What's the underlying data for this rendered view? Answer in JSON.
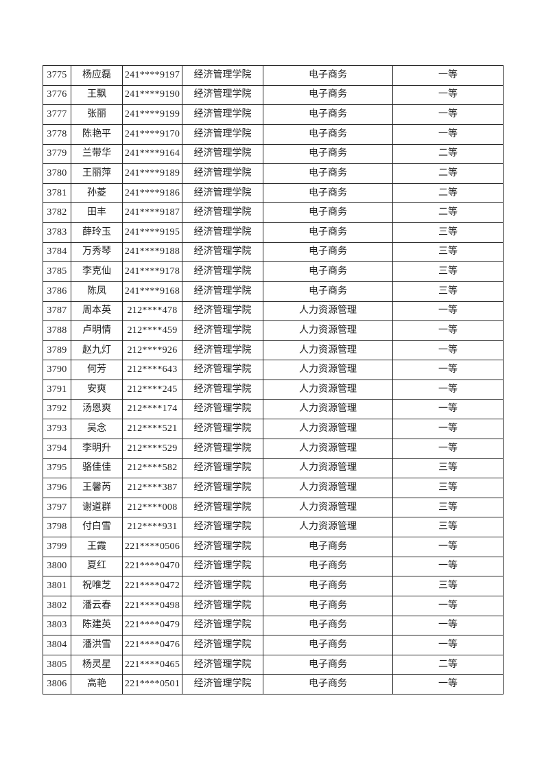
{
  "page": {
    "background_color": "#ffffff",
    "text_color": "#1f1f1f",
    "border_color": "#262626"
  },
  "table": {
    "rows": [
      [
        "3775",
        "杨应磊",
        "241****9197",
        "经济管理学院",
        "电子商务",
        "一等"
      ],
      [
        "3776",
        "王飘",
        "241****9190",
        "经济管理学院",
        "电子商务",
        "一等"
      ],
      [
        "3777",
        "张丽",
        "241****9199",
        "经济管理学院",
        "电子商务",
        "一等"
      ],
      [
        "3778",
        "陈艳平",
        "241****9170",
        "经济管理学院",
        "电子商务",
        "一等"
      ],
      [
        "3779",
        "兰带华",
        "241****9164",
        "经济管理学院",
        "电子商务",
        "二等"
      ],
      [
        "3780",
        "王丽萍",
        "241****9189",
        "经济管理学院",
        "电子商务",
        "二等"
      ],
      [
        "3781",
        "孙菱",
        "241****9186",
        "经济管理学院",
        "电子商务",
        "二等"
      ],
      [
        "3782",
        "田丰",
        "241****9187",
        "经济管理学院",
        "电子商务",
        "二等"
      ],
      [
        "3783",
        "薛玲玉",
        "241****9195",
        "经济管理学院",
        "电子商务",
        "三等"
      ],
      [
        "3784",
        "万秀琴",
        "241****9188",
        "经济管理学院",
        "电子商务",
        "三等"
      ],
      [
        "3785",
        "李克仙",
        "241****9178",
        "经济管理学院",
        "电子商务",
        "三等"
      ],
      [
        "3786",
        "陈凤",
        "241****9168",
        "经济管理学院",
        "电子商务",
        "三等"
      ],
      [
        "3787",
        "周本英",
        "212****478",
        "经济管理学院",
        "人力资源管理",
        "一等"
      ],
      [
        "3788",
        "卢明情",
        "212****459",
        "经济管理学院",
        "人力资源管理",
        "一等"
      ],
      [
        "3789",
        "赵九灯",
        "212****926",
        "经济管理学院",
        "人力资源管理",
        "一等"
      ],
      [
        "3790",
        "何芳",
        "212****643",
        "经济管理学院",
        "人力资源管理",
        "一等"
      ],
      [
        "3791",
        "安爽",
        "212****245",
        "经济管理学院",
        "人力资源管理",
        "一等"
      ],
      [
        "3792",
        "汤恩爽",
        "212****174",
        "经济管理学院",
        "人力资源管理",
        "一等"
      ],
      [
        "3793",
        "吴念",
        "212****521",
        "经济管理学院",
        "人力资源管理",
        "一等"
      ],
      [
        "3794",
        "李明升",
        "212****529",
        "经济管理学院",
        "人力资源管理",
        "一等"
      ],
      [
        "3795",
        "骆佳佳",
        "212****582",
        "经济管理学院",
        "人力资源管理",
        "三等"
      ],
      [
        "3796",
        "王馨芮",
        "212****387",
        "经济管理学院",
        "人力资源管理",
        "三等"
      ],
      [
        "3797",
        "谢道群",
        "212****008",
        "经济管理学院",
        "人力资源管理",
        "三等"
      ],
      [
        "3798",
        "付白雪",
        "212****931",
        "经济管理学院",
        "人力资源管理",
        "三等"
      ],
      [
        "3799",
        "王霞",
        "221****0506",
        "经济管理学院",
        "电子商务",
        "一等"
      ],
      [
        "3800",
        "夏红",
        "221****0470",
        "经济管理学院",
        "电子商务",
        "一等"
      ],
      [
        "3801",
        "祝唯芝",
        "221****0472",
        "经济管理学院",
        "电子商务",
        "三等"
      ],
      [
        "3802",
        "潘云春",
        "221****0498",
        "经济管理学院",
        "电子商务",
        "一等"
      ],
      [
        "3803",
        "陈建英",
        "221****0479",
        "经济管理学院",
        "电子商务",
        "一等"
      ],
      [
        "3804",
        "潘洪雪",
        "221****0476",
        "经济管理学院",
        "电子商务",
        "一等"
      ],
      [
        "3805",
        "杨灵星",
        "221****0465",
        "经济管理学院",
        "电子商务",
        "二等"
      ],
      [
        "3806",
        "高艳",
        "221****0501",
        "经济管理学院",
        "电子商务",
        "一等"
      ]
    ]
  }
}
